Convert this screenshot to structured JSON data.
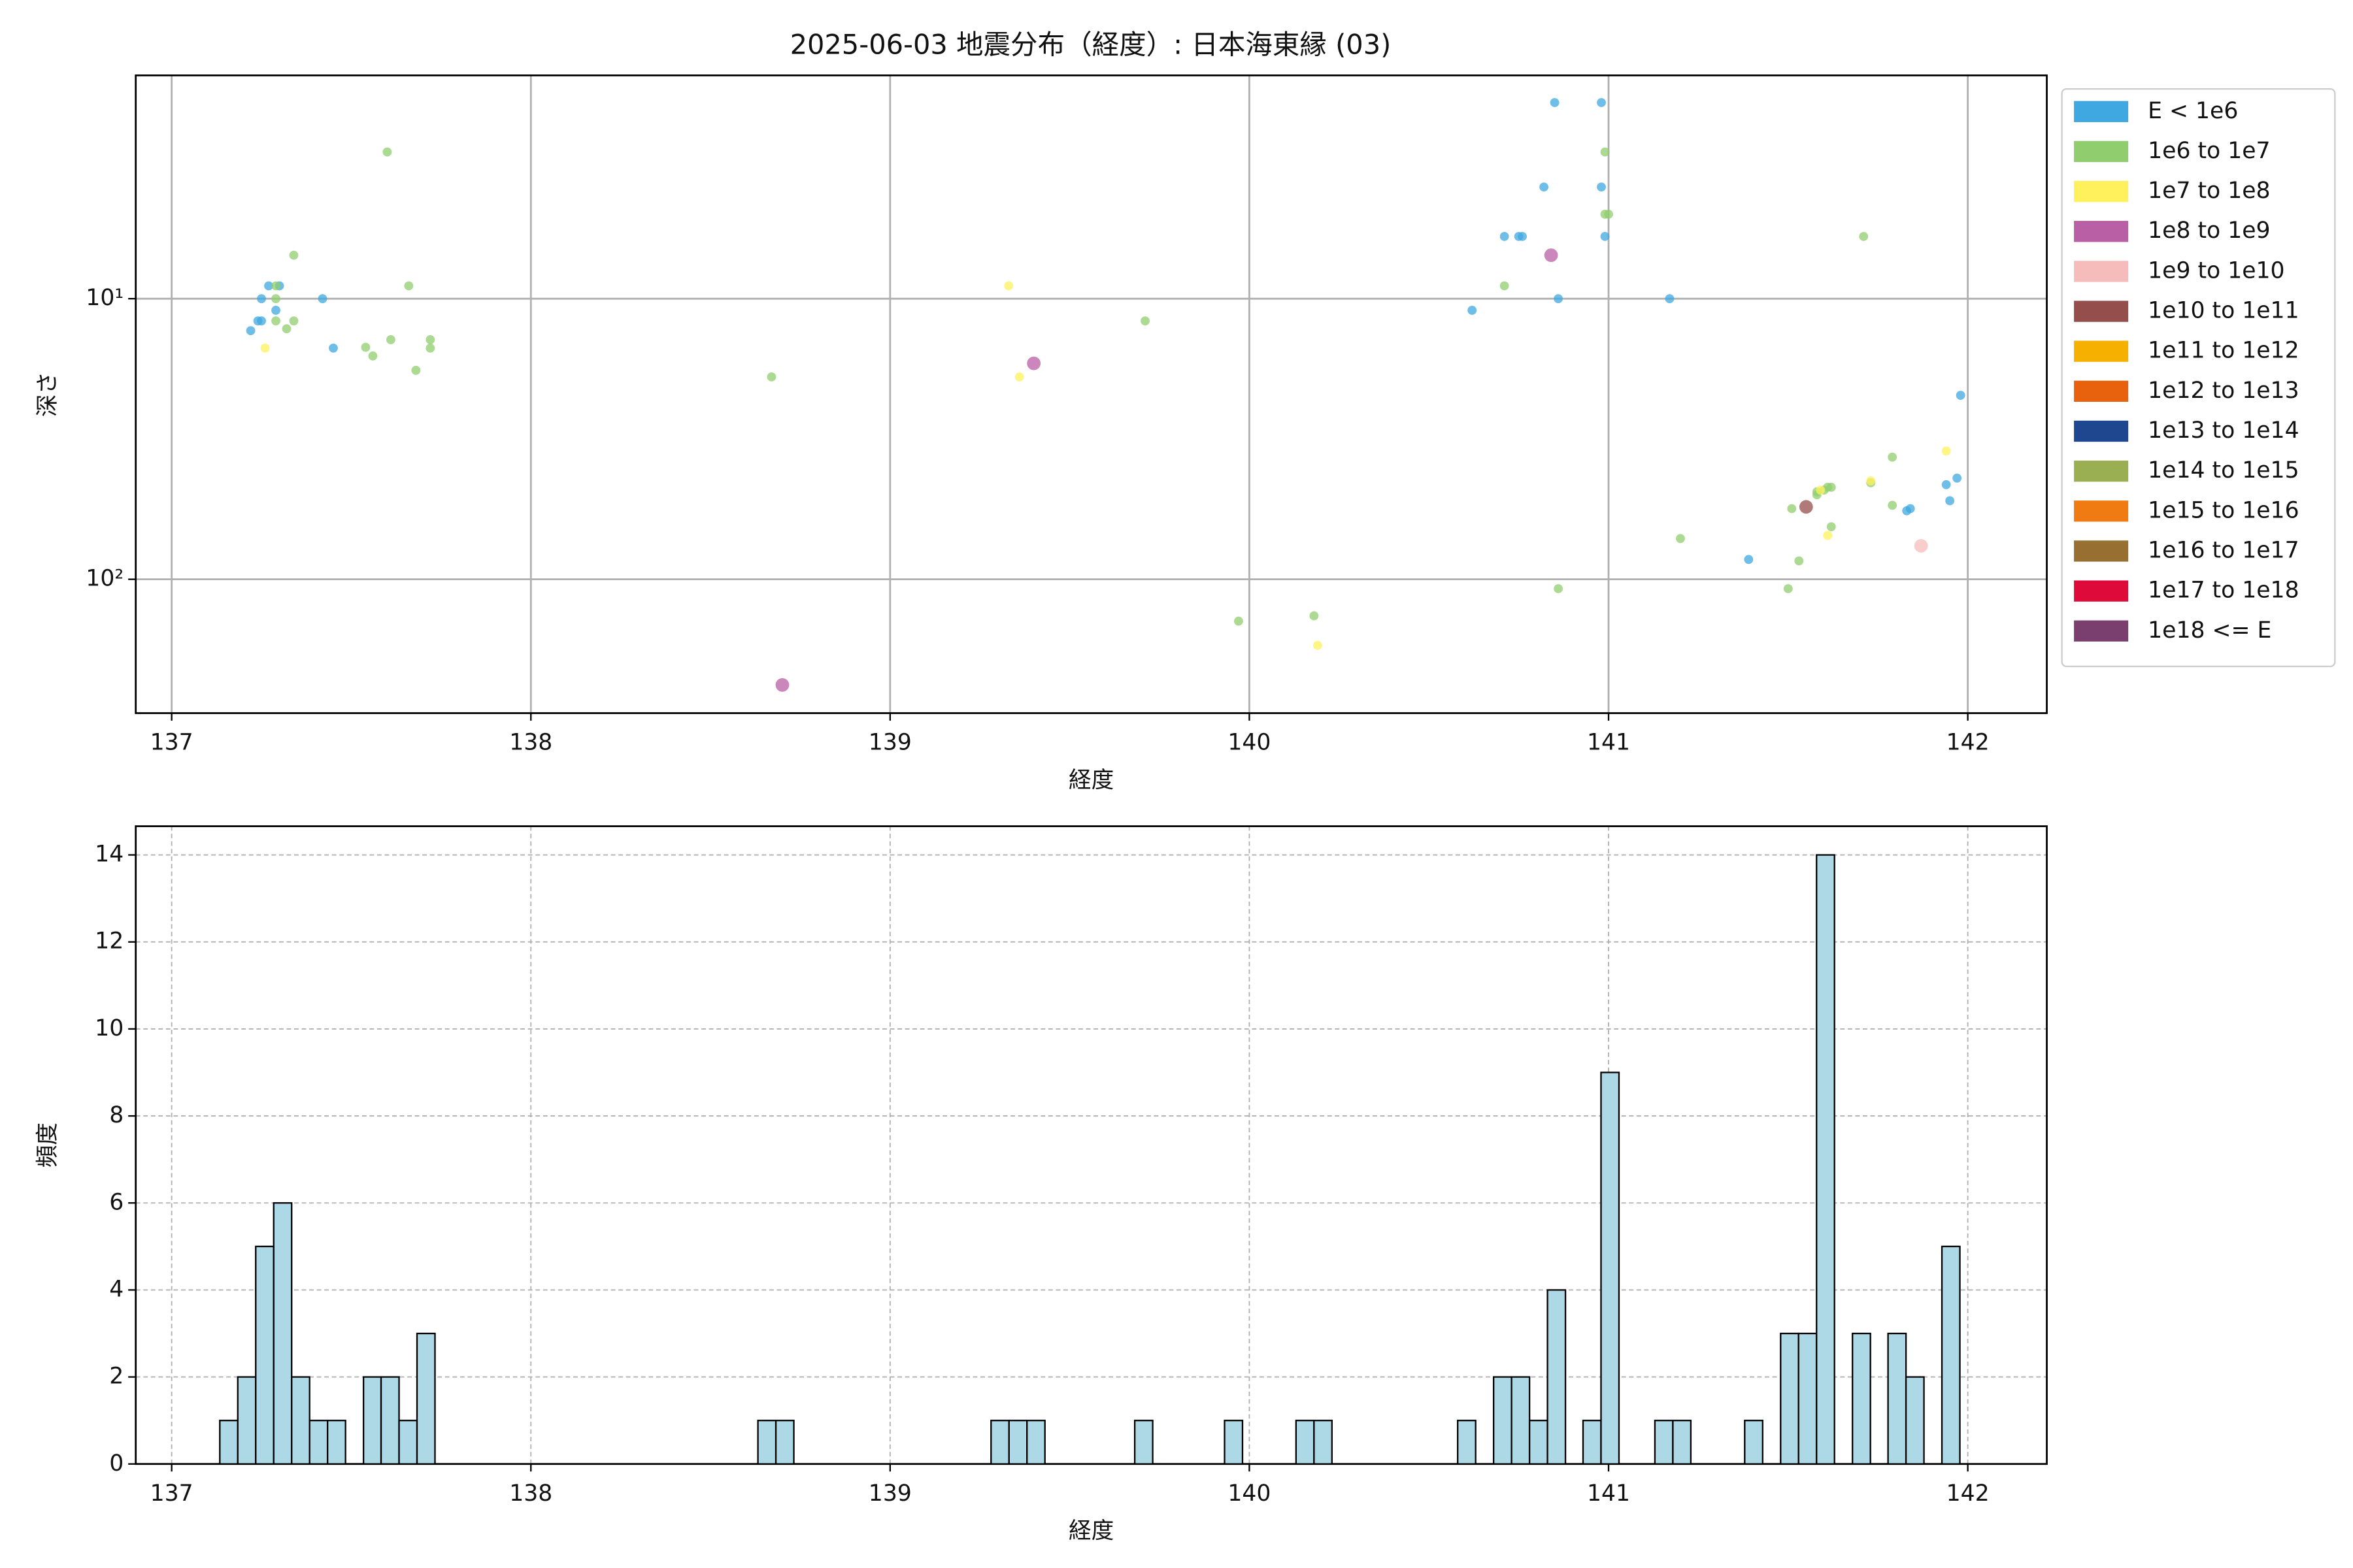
{
  "chart_data": [
    {
      "type": "scatter",
      "title": "2025-06-03 地震分布（経度）: 日本海東縁 (03)",
      "x_label": "経度",
      "y_label": "深さ",
      "xlim": [
        136.9,
        142.22
      ],
      "xticks": [
        137,
        138,
        139,
        140,
        141,
        142
      ],
      "ylim": [
        300,
        1.6
      ],
      "yticks": [
        {
          "value": 10,
          "label": "10¹"
        },
        {
          "value": 100,
          "label": "10²"
        }
      ],
      "log_y": true,
      "grid": true,
      "legend": "outside right",
      "series": [
        {
          "name": "E < 1e6",
          "color": "#3fa8e0",
          "x": [
            137.22,
            137.24,
            137.25,
            137.25,
            137.27,
            137.29,
            137.3,
            137.42,
            137.45,
            140.62,
            140.71,
            140.75,
            140.76,
            140.82,
            140.85,
            140.86,
            140.98,
            140.98,
            140.99,
            141.17,
            141.39,
            141.83,
            141.84,
            141.94,
            141.95,
            141.97,
            141.98
          ],
          "values": [
            13,
            12,
            12,
            10,
            9,
            11,
            9,
            10,
            15,
            11,
            6,
            6,
            6,
            4,
            2,
            10,
            2,
            4,
            6,
            10,
            85,
            57,
            56,
            46,
            52.5,
            43.6,
            22.1
          ]
        },
        {
          "name": "1e6 to 1e7",
          "color": "#90cd6e",
          "x": [
            137.6,
            137.34,
            137.29,
            137.29,
            137.29,
            137.32,
            137.34,
            137.54,
            137.56,
            137.61,
            137.66,
            137.68,
            137.72,
            137.72,
            138.67,
            139.71,
            139.97,
            140.18,
            140.71,
            140.99,
            140.99,
            141.0,
            141.2,
            140.86,
            141.5,
            141.51,
            141.53,
            141.58,
            141.58,
            141.6,
            141.61,
            141.62,
            141.62,
            141.71,
            141.73,
            141.79,
            141.79
          ],
          "values": [
            3,
            7,
            10,
            12,
            9,
            12.8,
            12,
            14.9,
            16,
            14,
            9,
            18,
            14,
            15,
            19,
            12,
            141,
            135,
            9,
            3,
            5,
            5,
            71.6,
            108,
            108,
            56,
            86,
            50,
            48.8,
            48.1,
            47,
            47,
            65,
            6,
            45.3,
            36.7,
            54.5
          ]
        },
        {
          "name": "1e7 to 1e8",
          "color": "#fff15c",
          "x": [
            137.26,
            139.33,
            139.36,
            140.19,
            141.61,
            141.73,
            141.94,
            141.59
          ],
          "values": [
            15,
            9,
            19,
            172,
            69.8,
            44.6,
            34.9,
            48.1
          ]
        },
        {
          "name": "1e8 to 1e9",
          "color": "#b95fa5",
          "x": [
            139.4,
            140.84,
            138.7
          ],
          "values": [
            17,
            7,
            238
          ]
        },
        {
          "name": "1e9 to 1e10",
          "color": "#f5bcbb",
          "x": [
            141.87
          ],
          "values": [
            76
          ]
        },
        {
          "name": "1e10 to 1e11",
          "color": "#944e4b",
          "x": [
            141.55
          ],
          "values": [
            55.2
          ]
        },
        {
          "name": "1e11 to 1e12",
          "color": "#f6b100",
          "x": [],
          "values": []
        },
        {
          "name": "1e12 to 1e13",
          "color": "#e8620e",
          "x": [],
          "values": []
        },
        {
          "name": "1e13 to 1e14",
          "color": "#1e4790",
          "x": [],
          "values": []
        },
        {
          "name": "1e14 to 1e15",
          "color": "#9aae52",
          "x": [],
          "values": []
        },
        {
          "name": "1e15 to 1e16",
          "color": "#ef7b12",
          "x": [],
          "values": []
        },
        {
          "name": "1e16 to 1e17",
          "color": "#976f31",
          "x": [],
          "values": []
        },
        {
          "name": "1e17 to 1e18",
          "color": "#dd0a3a",
          "x": [],
          "values": []
        },
        {
          "name": "1e18 <= E",
          "color": "#7a3f6f",
          "x": [],
          "values": []
        }
      ]
    },
    {
      "type": "histogram",
      "x_label": "経度",
      "y_label": "頻度",
      "color": "#add8e6",
      "edgecolor": "#000000",
      "grid": true,
      "xlim": [
        136.9,
        142.22
      ],
      "xticks": [
        137,
        138,
        139,
        140,
        141,
        142
      ],
      "ylim": [
        0,
        14.66
      ],
      "yticks": [
        0,
        2,
        4,
        6,
        8,
        10,
        12,
        14
      ],
      "bins": [
        137.134,
        137.184,
        137.234,
        137.284,
        137.334,
        137.384,
        137.434,
        137.484,
        137.534,
        137.583,
        137.633,
        137.683,
        137.733,
        137.783,
        137.833,
        137.883,
        137.933,
        137.983,
        138.033,
        138.083,
        138.133,
        138.183,
        138.233,
        138.283,
        138.333,
        138.383,
        138.432,
        138.482,
        138.532,
        138.582,
        138.632,
        138.682,
        138.732,
        138.782,
        138.832,
        138.882,
        138.932,
        138.982,
        139.032,
        139.082,
        139.132,
        139.182,
        139.232,
        139.281,
        139.331,
        139.381,
        139.431,
        139.481,
        139.531,
        139.581,
        139.631,
        139.681,
        139.731,
        139.781,
        139.831,
        139.881,
        139.931,
        139.981,
        140.031,
        140.08,
        140.13,
        140.18,
        140.23,
        140.28,
        140.33,
        140.38,
        140.43,
        140.48,
        140.53,
        140.58,
        140.63,
        140.68,
        140.73,
        140.78,
        140.83,
        140.88,
        140.929,
        140.979,
        141.029,
        141.079,
        141.129,
        141.179,
        141.229,
        141.279,
        141.329,
        141.379,
        141.429,
        141.479,
        141.529,
        141.579,
        141.629,
        141.679,
        141.729,
        141.778,
        141.828,
        141.878,
        141.928,
        141.978
      ],
      "values": [
        1,
        2,
        5,
        6,
        2,
        1,
        1,
        0,
        2,
        2,
        1,
        3,
        0,
        0,
        0,
        0,
        0,
        0,
        0,
        0,
        0,
        0,
        0,
        0,
        0,
        0,
        0,
        0,
        0,
        0,
        1,
        1,
        0,
        0,
        0,
        0,
        0,
        0,
        0,
        0,
        0,
        0,
        0,
        1,
        1,
        1,
        0,
        0,
        0,
        0,
        0,
        1,
        0,
        0,
        0,
        0,
        1,
        0,
        0,
        0,
        1,
        1,
        0,
        0,
        0,
        0,
        0,
        0,
        0,
        1,
        0,
        2,
        2,
        1,
        4,
        0,
        1,
        9,
        0,
        0,
        1,
        1,
        0,
        0,
        0,
        1,
        0,
        3,
        3,
        14,
        0,
        3,
        0,
        3,
        2,
        0,
        5
      ]
    }
  ]
}
